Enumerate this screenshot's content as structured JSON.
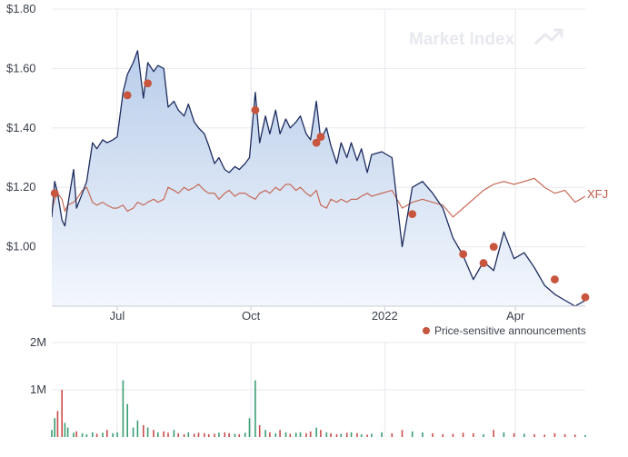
{
  "watermark": "Market Index",
  "colors": {
    "price": "#1d2c5e",
    "area_top": "#b9cdea",
    "area_bottom": "#f3f7fd",
    "benchmark": "#c4604b",
    "announcement": "#c8553d",
    "volume_green": "#3a9e72",
    "volume_red": "#c94c4c"
  },
  "chart_data": [
    {
      "type": "line",
      "x": [
        "2021-05-17",
        "2021-05-19",
        "2021-05-21",
        "2021-05-24",
        "2021-05-26",
        "2021-05-28",
        "2021-06-01",
        "2021-06-03",
        "2021-06-07",
        "2021-06-10",
        "2021-06-14",
        "2021-06-17",
        "2021-06-21",
        "2021-06-24",
        "2021-06-28",
        "2021-07-01",
        "2021-07-05",
        "2021-07-08",
        "2021-07-12",
        "2021-07-15",
        "2021-07-19",
        "2021-07-22",
        "2021-07-26",
        "2021-07-29",
        "2021-08-02",
        "2021-08-05",
        "2021-08-09",
        "2021-08-12",
        "2021-08-16",
        "2021-08-19",
        "2021-08-23",
        "2021-08-26",
        "2021-08-30",
        "2021-09-02",
        "2021-09-06",
        "2021-09-09",
        "2021-09-13",
        "2021-09-16",
        "2021-09-20",
        "2021-09-23",
        "2021-09-27",
        "2021-09-30",
        "2021-10-04",
        "2021-10-07",
        "2021-10-11",
        "2021-10-14",
        "2021-10-18",
        "2021-10-21",
        "2021-10-25",
        "2021-10-28",
        "2021-11-01",
        "2021-11-04",
        "2021-11-08",
        "2021-11-11",
        "2021-11-15",
        "2021-11-18",
        "2021-11-22",
        "2021-11-25",
        "2021-11-29",
        "2021-12-02",
        "2021-12-06",
        "2021-12-09",
        "2021-12-13",
        "2021-12-16",
        "2021-12-20",
        "2021-12-23",
        "2021-12-30",
        "2022-01-06",
        "2022-01-13",
        "2022-01-20",
        "2022-01-27",
        "2022-02-03",
        "2022-02-10",
        "2022-02-17",
        "2022-02-24",
        "2022-03-03",
        "2022-03-10",
        "2022-03-17",
        "2022-03-24",
        "2022-03-31",
        "2022-04-07",
        "2022-04-14",
        "2022-04-21",
        "2022-04-28",
        "2022-05-05",
        "2022-05-12",
        "2022-05-19"
      ],
      "series": [
        {
          "values": [
            1.1,
            1.22,
            1.18,
            1.09,
            1.07,
            1.14,
            1.26,
            1.13,
            1.18,
            1.22,
            1.35,
            1.33,
            1.36,
            1.35,
            1.36,
            1.37,
            1.52,
            1.58,
            1.62,
            1.66,
            1.5,
            1.62,
            1.59,
            1.61,
            1.6,
            1.47,
            1.49,
            1.46,
            1.44,
            1.48,
            1.42,
            1.4,
            1.38,
            1.34,
            1.28,
            1.3,
            1.26,
            1.25,
            1.27,
            1.26,
            1.28,
            1.3,
            1.52,
            1.35,
            1.44,
            1.38,
            1.46,
            1.38,
            1.43,
            1.4,
            1.42,
            1.44,
            1.38,
            1.36,
            1.49,
            1.36,
            1.4,
            1.34,
            1.28,
            1.35,
            1.3,
            1.35,
            1.29,
            1.33,
            1.25,
            1.31,
            1.32,
            1.3,
            1.0,
            1.2,
            1.22,
            1.18,
            1.13,
            1.03,
            0.97,
            0.89,
            0.95,
            0.92,
            1.05,
            0.96,
            0.98,
            0.93,
            0.87,
            0.84,
            0.82,
            0.8,
            0.82
          ],
          "color": "#1d2c5e"
        },
        {
          "name": "XFJ",
          "values": [
            1.12,
            1.16,
            1.18,
            1.16,
            1.12,
            1.14,
            1.15,
            1.16,
            1.19,
            1.2,
            1.15,
            1.14,
            1.15,
            1.14,
            1.13,
            1.13,
            1.14,
            1.12,
            1.13,
            1.15,
            1.14,
            1.15,
            1.16,
            1.15,
            1.16,
            1.2,
            1.19,
            1.18,
            1.2,
            1.19,
            1.2,
            1.21,
            1.19,
            1.18,
            1.18,
            1.16,
            1.18,
            1.19,
            1.17,
            1.18,
            1.18,
            1.17,
            1.16,
            1.18,
            1.19,
            1.18,
            1.2,
            1.19,
            1.21,
            1.21,
            1.19,
            1.2,
            1.18,
            1.17,
            1.19,
            1.14,
            1.13,
            1.16,
            1.15,
            1.16,
            1.15,
            1.16,
            1.16,
            1.17,
            1.18,
            1.17,
            1.18,
            1.19,
            1.13,
            1.15,
            1.16,
            1.15,
            1.14,
            1.1,
            1.13,
            1.16,
            1.19,
            1.21,
            1.22,
            1.21,
            1.22,
            1.23,
            1.2,
            1.18,
            1.19,
            1.15,
            1.17
          ],
          "color": "#c4604b"
        }
      ],
      "announcements": [
        {
          "x": "2021-05-19",
          "y": 1.18
        },
        {
          "x": "2021-07-08",
          "y": 1.51
        },
        {
          "x": "2021-07-22",
          "y": 1.55
        },
        {
          "x": "2021-10-04",
          "y": 1.46
        },
        {
          "x": "2021-11-15",
          "y": 1.35
        },
        {
          "x": "2021-11-18",
          "y": 1.37
        },
        {
          "x": "2022-01-20",
          "y": 1.11
        },
        {
          "x": "2022-02-24",
          "y": 0.975
        },
        {
          "x": "2022-03-10",
          "y": 0.945
        },
        {
          "x": "2022-03-17",
          "y": 1.0
        },
        {
          "x": "2022-04-28",
          "y": 0.89
        },
        {
          "x": "2022-05-19",
          "y": 0.83
        }
      ],
      "y_ticks": [
        {
          "value": 1.0,
          "label": "$1.00"
        },
        {
          "value": 1.2,
          "label": "$1.20"
        },
        {
          "value": 1.4,
          "label": "$1.40"
        },
        {
          "value": 1.6,
          "label": "$1.60"
        },
        {
          "value": 1.8,
          "label": "$1.80"
        }
      ],
      "x_ticks": [
        {
          "x": "2021-07-01",
          "label": "Jul"
        },
        {
          "x": "2021-10-01",
          "label": "Oct"
        },
        {
          "x": "2022-01-01",
          "label": "2022"
        },
        {
          "x": "2022-04-01",
          "label": "Apr"
        }
      ],
      "xlim": [
        "2021-05-17",
        "2022-05-19"
      ],
      "ylim": [
        0.8,
        1.8
      ],
      "legend": {
        "label": "Price-sensitive announcements",
        "position": "bottom-right"
      },
      "grid": true
    },
    {
      "type": "bar",
      "x": [
        "2021-05-17",
        "2021-05-19",
        "2021-05-21",
        "2021-05-24",
        "2021-05-26",
        "2021-05-28",
        "2021-06-01",
        "2021-06-03",
        "2021-06-07",
        "2021-06-10",
        "2021-06-14",
        "2021-06-17",
        "2021-06-21",
        "2021-06-24",
        "2021-06-28",
        "2021-07-01",
        "2021-07-05",
        "2021-07-08",
        "2021-07-12",
        "2021-07-15",
        "2021-07-19",
        "2021-07-22",
        "2021-07-26",
        "2021-07-29",
        "2021-08-02",
        "2021-08-05",
        "2021-08-09",
        "2021-08-12",
        "2021-08-16",
        "2021-08-19",
        "2021-08-23",
        "2021-08-26",
        "2021-08-30",
        "2021-09-02",
        "2021-09-06",
        "2021-09-09",
        "2021-09-13",
        "2021-09-16",
        "2021-09-20",
        "2021-09-23",
        "2021-09-27",
        "2021-09-30",
        "2021-10-04",
        "2021-10-07",
        "2021-10-11",
        "2021-10-14",
        "2021-10-18",
        "2021-10-21",
        "2021-10-25",
        "2021-10-28",
        "2021-11-01",
        "2021-11-04",
        "2021-11-08",
        "2021-11-11",
        "2021-11-15",
        "2021-11-18",
        "2021-11-22",
        "2021-11-25",
        "2021-11-29",
        "2021-12-02",
        "2021-12-06",
        "2021-12-09",
        "2021-12-13",
        "2021-12-16",
        "2021-12-20",
        "2021-12-23",
        "2021-12-30",
        "2022-01-06",
        "2022-01-13",
        "2022-01-20",
        "2022-01-27",
        "2022-02-03",
        "2022-02-10",
        "2022-02-17",
        "2022-02-24",
        "2022-03-03",
        "2022-03-10",
        "2022-03-17",
        "2022-03-24",
        "2022-03-31",
        "2022-04-07",
        "2022-04-14",
        "2022-04-21",
        "2022-04-28",
        "2022-05-05",
        "2022-05-12",
        "2022-05-19"
      ],
      "values": [
        150000,
        400000,
        550000,
        1000000,
        300000,
        200000,
        90000,
        120000,
        80000,
        60000,
        100000,
        70000,
        90000,
        150000,
        80000,
        100000,
        1200000,
        700000,
        200000,
        350000,
        250000,
        200000,
        150000,
        100000,
        120000,
        90000,
        150000,
        80000,
        60000,
        100000,
        70000,
        90000,
        80000,
        60000,
        70000,
        90000,
        100000,
        80000,
        70000,
        60000,
        90000,
        400000,
        1200000,
        250000,
        150000,
        100000,
        80000,
        150000,
        100000,
        70000,
        90000,
        100000,
        80000,
        120000,
        200000,
        150000,
        100000,
        80000,
        60000,
        70000,
        90000,
        100000,
        80000,
        60000,
        50000,
        70000,
        100000,
        80000,
        150000,
        120000,
        100000,
        80000,
        60000,
        70000,
        90000,
        80000,
        60000,
        150000,
        100000,
        80000,
        70000,
        60000,
        50000,
        80000,
        60000,
        50000,
        40000
      ],
      "up": [
        true,
        true,
        false,
        false,
        true,
        true,
        true,
        false,
        true,
        true,
        true,
        false,
        true,
        false,
        true,
        true,
        true,
        true,
        true,
        true,
        false,
        true,
        false,
        true,
        false,
        false,
        true,
        false,
        false,
        true,
        false,
        false,
        false,
        false,
        false,
        true,
        false,
        false,
        true,
        false,
        true,
        true,
        true,
        false,
        true,
        false,
        true,
        false,
        true,
        false,
        true,
        true,
        false,
        false,
        true,
        false,
        true,
        false,
        false,
        true,
        false,
        true,
        false,
        true,
        false,
        true,
        true,
        false,
        false,
        true,
        true,
        false,
        false,
        false,
        false,
        false,
        true,
        false,
        true,
        false,
        true,
        false,
        false,
        false,
        false,
        false,
        true
      ],
      "y_ticks": [
        {
          "value": 1000000,
          "label": "1M"
        },
        {
          "value": 2000000,
          "label": "2M"
        }
      ],
      "ylim": [
        0,
        2000000
      ]
    }
  ]
}
